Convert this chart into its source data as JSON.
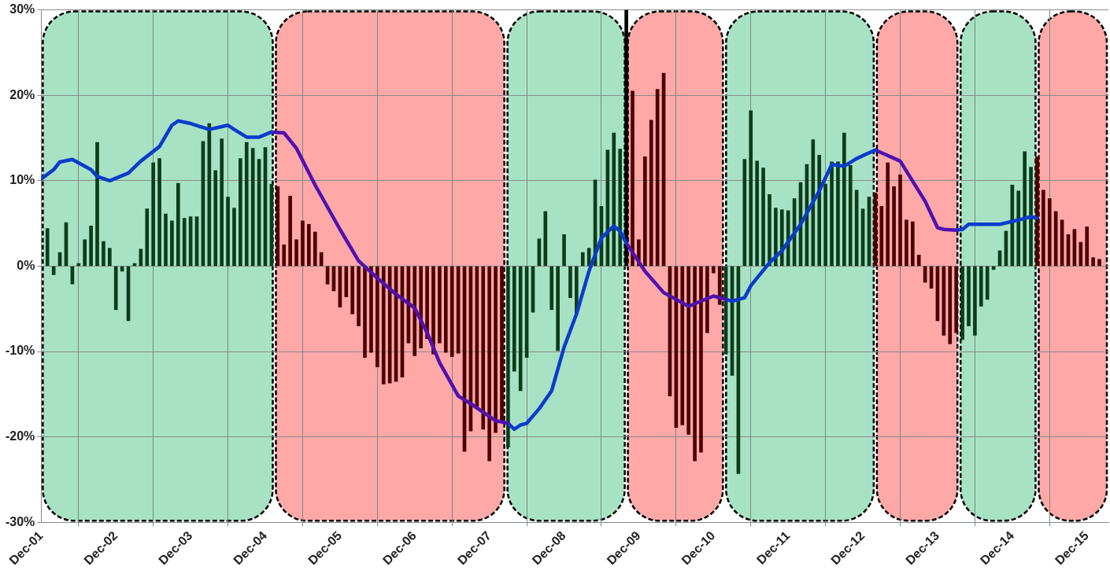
{
  "chart_data": {
    "type": "bar",
    "xlim": [
      "2001-12",
      "2016-03-15"
    ],
    "xticks": [
      {
        "value": "2001-12",
        "label": "Dec-01"
      },
      {
        "value": "2002-12",
        "label": "Dec-02"
      },
      {
        "value": "2003-12",
        "label": "Dec-03"
      },
      {
        "value": "2004-12",
        "label": "Dec-04"
      },
      {
        "value": "2005-12",
        "label": "Dec-05"
      },
      {
        "value": "2006-12",
        "label": "Dec-06"
      },
      {
        "value": "2007-12",
        "label": "Dec-07"
      },
      {
        "value": "2008-12",
        "label": "Dec-08"
      },
      {
        "value": "2009-12",
        "label": "Dec-09"
      },
      {
        "value": "2010-12",
        "label": "Dec-10"
      },
      {
        "value": "2011-12",
        "label": "Dec-11"
      },
      {
        "value": "2012-12",
        "label": "Dec-12"
      },
      {
        "value": "2013-12",
        "label": "Dec-13"
      },
      {
        "value": "2014-12",
        "label": "Dec-14"
      },
      {
        "value": "2015-12",
        "label": "Dec-15"
      }
    ],
    "ylim": [
      -30,
      30
    ],
    "yticks": [
      {
        "value": -30,
        "label": "-30%"
      },
      {
        "value": -20,
        "label": "-20%"
      },
      {
        "value": -10,
        "label": "-10%"
      },
      {
        "value": 0,
        "label": "0%"
      },
      {
        "value": 10,
        "label": "10%"
      },
      {
        "value": 20,
        "label": "20%"
      },
      {
        "value": 30,
        "label": "30%"
      }
    ],
    "grid": true,
    "legend": false,
    "bands": [
      {
        "axis": "x",
        "from": "2001-12",
        "to": "2005-01-15",
        "color": "#a8e2c4"
      },
      {
        "axis": "x",
        "from": "2005-01-15",
        "to": "2008-02-20",
        "color": "#ffa8a8"
      },
      {
        "axis": "x",
        "from": "2008-02-20",
        "to": "2009-10",
        "color": "#a8e2c4"
      },
      {
        "axis": "x",
        "from": "2009-10",
        "to": "2011-01-25",
        "color": "#ffa8a8"
      },
      {
        "axis": "x",
        "from": "2011-01-25",
        "to": "2013-02",
        "color": "#a8e2c4"
      },
      {
        "axis": "x",
        "from": "2013-02",
        "to": "2014-03-15",
        "color": "#ffa8a8"
      },
      {
        "axis": "x",
        "from": "2014-03-15",
        "to": "2015-04",
        "color": "#a8e2c4"
      },
      {
        "axis": "x",
        "from": "2015-04",
        "to": "2016-03-15",
        "color": "#ffa8a8"
      }
    ],
    "series": [
      {
        "color": "#0b3d1c",
        "x": [
          "2002-01",
          "2002-02",
          "2002-03",
          "2002-04",
          "2002-05",
          "2002-06",
          "2002-07",
          "2002-08",
          "2002-09",
          "2002-10",
          "2002-11",
          "2002-12",
          "2003-01",
          "2003-02",
          "2003-03",
          "2003-04",
          "2003-05",
          "2003-06",
          "2003-07",
          "2003-08",
          "2003-09",
          "2003-10",
          "2003-11",
          "2003-12",
          "2004-01",
          "2004-02",
          "2004-03",
          "2004-04",
          "2004-05",
          "2004-06",
          "2004-07",
          "2004-08",
          "2004-09",
          "2004-10",
          "2004-11",
          "2004-12",
          "2005-01"
        ],
        "values": [
          4.4,
          -1.0,
          1.6,
          5.1,
          -2.1,
          0.3,
          3.1,
          4.7,
          14.5,
          2.9,
          2.1,
          -5.1,
          -0.6,
          -6.4,
          0.3,
          2.0,
          6.7,
          12.1,
          12.6,
          6.1,
          5.3,
          9.7,
          5.6,
          5.8,
          5.8,
          14.6,
          16.7,
          11.2,
          14.9,
          8.1,
          6.8,
          12.6,
          14.5,
          13.8,
          12.5,
          13.9,
          9.6
        ]
      },
      {
        "color": "#4d0000",
        "x": [
          "2005-02",
          "2005-03",
          "2005-04",
          "2005-05",
          "2005-06",
          "2005-07",
          "2005-08",
          "2005-09",
          "2005-10",
          "2005-11",
          "2005-12",
          "2006-01",
          "2006-02",
          "2006-03",
          "2006-04",
          "2006-05",
          "2006-06",
          "2006-07",
          "2006-08",
          "2006-09",
          "2006-10",
          "2006-11",
          "2006-12",
          "2007-01",
          "2007-02",
          "2007-03",
          "2007-04",
          "2007-05",
          "2007-06",
          "2007-07",
          "2007-08",
          "2007-09",
          "2007-10",
          "2007-11",
          "2007-12",
          "2008-01",
          "2008-02"
        ],
        "values": [
          9.3,
          2.5,
          8.2,
          3.1,
          5.3,
          4.9,
          4.0,
          1.6,
          -2.1,
          -2.9,
          -4.8,
          -3.6,
          -5.6,
          -7.0,
          -10.7,
          -10.1,
          -11.8,
          -13.8,
          -13.7,
          -13.5,
          -13.0,
          -9.0,
          -10.5,
          -9.6,
          -8.5,
          -10.3,
          -9.0,
          -10.1,
          -10.6,
          -10.2,
          -21.7,
          -19.3,
          -16.7,
          -19.1,
          -22.8,
          -19.5,
          -18.1
        ]
      },
      {
        "color": "#0b3d1c",
        "x": [
          "2008-03",
          "2008-04",
          "2008-05",
          "2008-06",
          "2008-07",
          "2008-08",
          "2008-09",
          "2008-10",
          "2008-11",
          "2008-12",
          "2009-01",
          "2009-02",
          "2009-03",
          "2009-04",
          "2009-05",
          "2009-06",
          "2009-07",
          "2009-08",
          "2009-09"
        ],
        "values": [
          -21.2,
          -12.3,
          -14.6,
          -10.7,
          -5.4,
          3.2,
          6.4,
          -5.1,
          -9.9,
          3.7,
          -3.7,
          -5.6,
          1.6,
          2.1,
          10.1,
          7.0,
          13.6,
          15.6,
          13.7
        ]
      },
      {
        "color": "#000000",
        "x": [
          "2009-10"
        ],
        "values": [
          30
        ]
      },
      {
        "color": "#4d0000",
        "x": [
          "2009-11",
          "2009-12",
          "2010-01",
          "2010-02",
          "2010-03",
          "2010-04",
          "2010-05",
          "2010-06",
          "2010-07",
          "2010-08",
          "2010-09",
          "2010-10",
          "2010-11",
          "2010-12",
          "2011-01"
        ],
        "values": [
          20.5,
          3.1,
          12.8,
          17.1,
          20.7,
          22.6,
          -15.2,
          -18.9,
          -18.6,
          -19.7,
          -22.8,
          -21.8,
          -7.8,
          -0.8,
          -4.5
        ]
      },
      {
        "color": "#0b3d1c",
        "x": [
          "2011-02",
          "2011-03",
          "2011-04",
          "2011-05",
          "2011-06",
          "2011-07",
          "2011-08",
          "2011-09",
          "2011-10",
          "2011-11",
          "2011-12",
          "2012-01",
          "2012-02",
          "2012-03",
          "2012-04",
          "2012-05",
          "2012-06",
          "2012-07",
          "2012-08",
          "2012-09",
          "2012-10",
          "2012-11",
          "2012-12",
          "2013-01"
        ],
        "values": [
          -10.3,
          -12.8,
          -24.3,
          12.5,
          18.2,
          12.3,
          11.5,
          8.4,
          6.8,
          6.6,
          6.5,
          7.9,
          9.8,
          11.9,
          14.8,
          13.0,
          9.6,
          12.2,
          12.2,
          15.6,
          11.8,
          8.9,
          6.7,
          8.1
        ]
      },
      {
        "color": "#4d0000",
        "x": [
          "2013-02",
          "2013-03",
          "2013-04",
          "2013-05",
          "2013-06",
          "2013-07",
          "2013-08",
          "2013-09",
          "2013-10",
          "2013-11",
          "2013-12",
          "2014-01",
          "2014-02",
          "2014-03"
        ],
        "values": [
          8.6,
          7.0,
          12.1,
          9.3,
          10.7,
          5.4,
          5.2,
          1.3,
          -1.9,
          -2.6,
          -6.4,
          -8.1,
          -9.1,
          -7.8
        ]
      },
      {
        "color": "#0b3d1c",
        "x": [
          "2014-04",
          "2014-05",
          "2014-06",
          "2014-07",
          "2014-08",
          "2014-09",
          "2014-10",
          "2014-11",
          "2014-12",
          "2015-01",
          "2015-02",
          "2015-03"
        ],
        "values": [
          -8.6,
          -7.0,
          -8.1,
          -4.7,
          -3.9,
          -0.4,
          1.8,
          4.1,
          9.5,
          8.8,
          13.4,
          11.6
        ]
      },
      {
        "color": "#4d0000",
        "x": [
          "2015-04",
          "2015-05",
          "2015-06",
          "2015-07",
          "2015-08",
          "2015-09",
          "2015-10",
          "2015-11",
          "2015-12",
          "2016-01",
          "2016-02"
        ],
        "values": [
          12.8,
          8.9,
          7.9,
          6.4,
          5.4,
          3.7,
          4.3,
          2.8,
          4.6,
          1.0,
          0.8
        ]
      },
      {
        "type": "line",
        "color": "#0a3ccc",
        "x": [
          "2001-12",
          "2002-02",
          "2002-03",
          "2002-05",
          "2002-08",
          "2002-09",
          "2002-11",
          "2003-02",
          "2003-04",
          "2003-07",
          "2003-09",
          "2003-10",
          "2003-12",
          "2004-03",
          "2004-06",
          "2004-07",
          "2004-09",
          "2004-11",
          "2005-01"
        ],
        "values": [
          10.2,
          11.3,
          12.2,
          12.5,
          11.3,
          10.5,
          10.0,
          10.9,
          12.3,
          14.0,
          16.5,
          17.0,
          16.7,
          16.0,
          16.5,
          16.0,
          15.1,
          15.1,
          15.7
        ]
      },
      {
        "type": "line",
        "color": "#5010b0",
        "x": [
          "2005-01",
          "2005-03",
          "2005-05",
          "2005-08",
          "2005-12",
          "2006-03",
          "2006-06",
          "2006-09",
          "2006-12",
          "2007-02",
          "2007-04",
          "2007-07",
          "2007-09",
          "2007-11",
          "2008-01",
          "2008-03"
        ],
        "values": [
          15.7,
          15.6,
          13.8,
          9.5,
          4.3,
          0.6,
          -1.4,
          -3.3,
          -4.9,
          -7.8,
          -11.3,
          -15.2,
          -16.1,
          -17.1,
          -18.1,
          -18.4
        ]
      },
      {
        "type": "line",
        "color": "#0a3ccc",
        "x": [
          "2008-03",
          "2008-04",
          "2008-05",
          "2008-06",
          "2008-08",
          "2008-10",
          "2008-12",
          "2009-02",
          "2009-04",
          "2009-06",
          "2009-08",
          "2009-09",
          "2009-10"
        ],
        "values": [
          -18.4,
          -19.1,
          -18.6,
          -18.4,
          -16.7,
          -14.6,
          -9.5,
          -5.6,
          -0.6,
          3.3,
          4.7,
          4.1,
          2.7
        ]
      },
      {
        "type": "line",
        "color": "#5010b0",
        "x": [
          "2009-10",
          "2010-01",
          "2010-04",
          "2010-08",
          "2010-12",
          "2011-02"
        ],
        "values": [
          2.7,
          -0.6,
          -3.1,
          -4.7,
          -3.5,
          -3.9
        ]
      },
      {
        "type": "line",
        "color": "#0a3ccc",
        "x": [
          "2011-02",
          "2011-03",
          "2011-05",
          "2011-06",
          "2011-09",
          "2011-11",
          "2012-02",
          "2012-05",
          "2012-07",
          "2012-09",
          "2012-11",
          "2013-02"
        ],
        "values": [
          -3.9,
          -4.1,
          -3.7,
          -2.3,
          0.4,
          1.8,
          4.9,
          8.8,
          11.9,
          11.7,
          12.6,
          13.6
        ]
      },
      {
        "type": "line",
        "color": "#5010b0",
        "x": [
          "2013-02",
          "2013-06",
          "2013-10",
          "2013-12",
          "2014-01",
          "2014-03"
        ],
        "values": [
          13.6,
          12.3,
          7.6,
          4.5,
          4.3,
          4.2
        ]
      },
      {
        "type": "line",
        "color": "#0a3ccc",
        "x": [
          "2014-03",
          "2014-04",
          "2014-05",
          "2014-10",
          "2015-01",
          "2015-03",
          "2015-04"
        ],
        "values": [
          4.2,
          4.3,
          4.9,
          4.9,
          5.4,
          5.8,
          5.6
        ]
      }
    ]
  }
}
